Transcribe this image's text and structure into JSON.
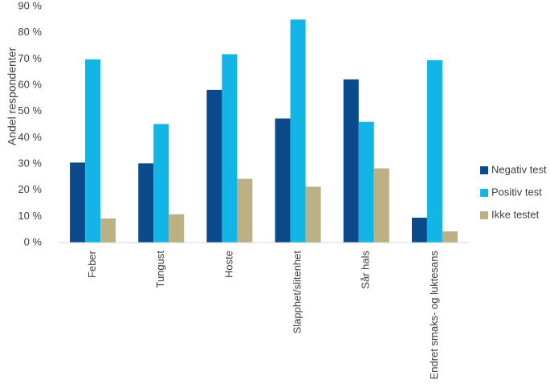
{
  "chart_data": {
    "type": "bar",
    "ylabel": "Andel respondenter",
    "ylim": [
      0,
      90
    ],
    "yticks": [
      0,
      10,
      20,
      30,
      40,
      50,
      60,
      70,
      80,
      90
    ],
    "ytick_labels": [
      "0 %",
      "10 %",
      "20 %",
      "30 %",
      "40 %",
      "50 %",
      "60 %",
      "70 %",
      "80 %",
      "90 %"
    ],
    "categories": [
      "Feber",
      "Tungust",
      "Hoste",
      "Slapphet/slitenhet",
      "Sår hals",
      "Endret smaks- og luktesans"
    ],
    "series": [
      {
        "name": "Negativ test",
        "color": "#0b4a8b",
        "values": [
          30.5,
          30.2,
          58.2,
          47.3,
          62.2,
          9.5
        ]
      },
      {
        "name": "Positiv test",
        "color": "#12b5e5",
        "values": [
          69.8,
          45.2,
          71.8,
          85.0,
          46.0,
          69.5
        ]
      },
      {
        "name": "Ikke testet",
        "color": "#bcb185",
        "values": [
          9.2,
          10.8,
          24.3,
          21.3,
          28.3,
          4.3
        ]
      }
    ],
    "grid": false,
    "legend_position": "right"
  }
}
